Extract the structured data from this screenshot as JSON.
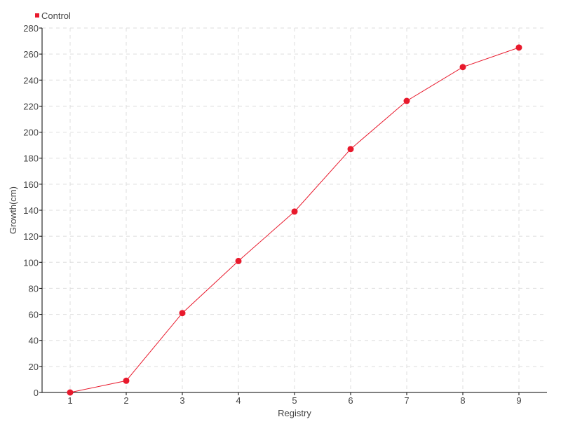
{
  "chart_data": {
    "type": "line",
    "title": "",
    "xlabel": "Registry",
    "ylabel": "Growth(cm)",
    "x": [
      1,
      2,
      3,
      4,
      5,
      6,
      7,
      8,
      9
    ],
    "series": [
      {
        "name": "Control",
        "values": [
          0,
          9,
          61,
          101,
          139,
          187,
          224,
          250,
          265
        ],
        "color": "#e8192c"
      }
    ],
    "ylim": [
      0,
      280
    ],
    "yticks": [
      0,
      20,
      40,
      60,
      80,
      100,
      120,
      140,
      160,
      180,
      200,
      220,
      240,
      260,
      280
    ],
    "grid": true,
    "legend": "top-left"
  }
}
